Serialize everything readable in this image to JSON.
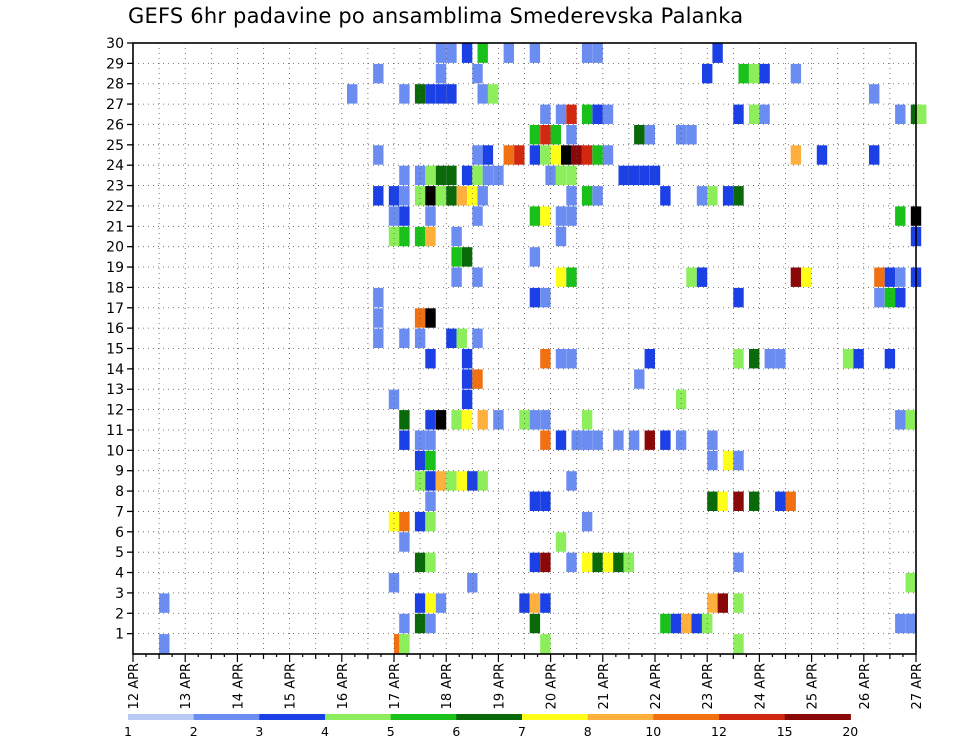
{
  "chart_data": {
    "type": "heatmap",
    "title": "GEFS 6hr padavine po ansamblima Smederevska Palanka",
    "xlabel": "",
    "ylabel": "",
    "x_tick_labels": [
      "12 APR",
      "13 APR",
      "14 APR",
      "15 APR",
      "16 APR",
      "17 APR",
      "18 APR",
      "19 APR",
      "20 APR",
      "21 APR",
      "22 APR",
      "23 APR",
      "24 APR",
      "25 APR",
      "26 APR",
      "27 APR"
    ],
    "y_tick_labels": [
      "1",
      "2",
      "3",
      "4",
      "5",
      "6",
      "7",
      "8",
      "9",
      "10",
      "11",
      "12",
      "13",
      "14",
      "15",
      "16",
      "17",
      "18",
      "19",
      "20",
      "21",
      "22",
      "23",
      "24",
      "25",
      "26",
      "27",
      "28",
      "29",
      "30"
    ],
    "xlim": [
      0,
      15
    ],
    "ylim": [
      0,
      30
    ],
    "time_step_days": 0.125,
    "grid": true,
    "legend": {
      "position": "bottom",
      "colors": [
        "#b9c8f5",
        "#6b8cf0",
        "#1a40e6",
        "#8cee5a",
        "#19c11a",
        "#0a6a0a",
        "#ffff1a",
        "#ffb03c",
        "#f07012",
        "#d22810",
        "#8a0808"
      ],
      "labels": [
        "1",
        "2",
        "3",
        "4",
        "5",
        "6",
        "7",
        "8",
        "10",
        "12",
        "15",
        "20"
      ]
    },
    "cells": [
      [
        0.5,
        0,
        1
      ],
      [
        5,
        0,
        8
      ],
      [
        5.1,
        0,
        3
      ],
      [
        7.8,
        0,
        3
      ],
      [
        11.5,
        0,
        3
      ],
      [
        5.1,
        1,
        1
      ],
      [
        5.4,
        1,
        5
      ],
      [
        5.6,
        1,
        1
      ],
      [
        7.6,
        1,
        5
      ],
      [
        10.1,
        1,
        4
      ],
      [
        10.3,
        1,
        2
      ],
      [
        10.5,
        1,
        7
      ],
      [
        10.7,
        1,
        2
      ],
      [
        10.9,
        1,
        3
      ],
      [
        14.6,
        1,
        1
      ],
      [
        14.8,
        1,
        1
      ],
      [
        0.5,
        2,
        1
      ],
      [
        5.4,
        2,
        2
      ],
      [
        5.6,
        2,
        6
      ],
      [
        5.8,
        2,
        1
      ],
      [
        7.4,
        2,
        2
      ],
      [
        7.6,
        2,
        7
      ],
      [
        7.8,
        2,
        2
      ],
      [
        11,
        2,
        7
      ],
      [
        11.2,
        2,
        10
      ],
      [
        11.5,
        2,
        3
      ],
      [
        4.9,
        3,
        1
      ],
      [
        6.4,
        3,
        1
      ],
      [
        14.8,
        3,
        3
      ],
      [
        5.4,
        4,
        5
      ],
      [
        5.6,
        4,
        3
      ],
      [
        7.6,
        4,
        2
      ],
      [
        7.8,
        4,
        10
      ],
      [
        8.3,
        4,
        1
      ],
      [
        8.6,
        4,
        6
      ],
      [
        8.8,
        4,
        5
      ],
      [
        9,
        4,
        6
      ],
      [
        9.2,
        4,
        5
      ],
      [
        9.4,
        4,
        3
      ],
      [
        11.5,
        4,
        1
      ],
      [
        5.1,
        5,
        1
      ],
      [
        8.1,
        5,
        3
      ],
      [
        4.9,
        6,
        6
      ],
      [
        5.1,
        6,
        8
      ],
      [
        5.4,
        6,
        2
      ],
      [
        5.6,
        6,
        3
      ],
      [
        8.6,
        6,
        1
      ],
      [
        5.6,
        7,
        1
      ],
      [
        7.6,
        7,
        2
      ],
      [
        7.8,
        7,
        2
      ],
      [
        11,
        7,
        5
      ],
      [
        11.2,
        7,
        6
      ],
      [
        11.5,
        7,
        10
      ],
      [
        11.8,
        7,
        5
      ],
      [
        12.3,
        7,
        2
      ],
      [
        12.5,
        7,
        8
      ],
      [
        5.4,
        8,
        3
      ],
      [
        5.6,
        8,
        2
      ],
      [
        5.8,
        8,
        7
      ],
      [
        6,
        8,
        3
      ],
      [
        6.2,
        8,
        6
      ],
      [
        6.4,
        8,
        2
      ],
      [
        6.6,
        8,
        3
      ],
      [
        8.3,
        8,
        1
      ],
      [
        5.4,
        9,
        2
      ],
      [
        5.6,
        9,
        4
      ],
      [
        11,
        9,
        1
      ],
      [
        11.3,
        9,
        6
      ],
      [
        11.5,
        9,
        1
      ],
      [
        5.1,
        10,
        2
      ],
      [
        5.4,
        10,
        1
      ],
      [
        5.6,
        10,
        1
      ],
      [
        7.8,
        10,
        8
      ],
      [
        8.1,
        10,
        2
      ],
      [
        8.4,
        10,
        1
      ],
      [
        8.6,
        10,
        1
      ],
      [
        8.8,
        10,
        1
      ],
      [
        9.2,
        10,
        1
      ],
      [
        9.5,
        10,
        1
      ],
      [
        9.8,
        10,
        10
      ],
      [
        10.1,
        10,
        2
      ],
      [
        10.4,
        10,
        1
      ],
      [
        11,
        10,
        1
      ],
      [
        5.1,
        11,
        5
      ],
      [
        5.6,
        11,
        2
      ],
      [
        5.8,
        11,
        11
      ],
      [
        6.1,
        11,
        3
      ],
      [
        6.3,
        11,
        6
      ],
      [
        6.6,
        11,
        7
      ],
      [
        6.9,
        11,
        1
      ],
      [
        7.4,
        11,
        3
      ],
      [
        7.6,
        11,
        1
      ],
      [
        7.8,
        11,
        1
      ],
      [
        8.6,
        11,
        3
      ],
      [
        14.6,
        11,
        1
      ],
      [
        14.8,
        11,
        3
      ],
      [
        4.9,
        12,
        1
      ],
      [
        6.3,
        12,
        2
      ],
      [
        10.4,
        12,
        3
      ],
      [
        6.3,
        13,
        2
      ],
      [
        6.5,
        13,
        8
      ],
      [
        9.6,
        13,
        1
      ],
      [
        5.6,
        14,
        2
      ],
      [
        6.3,
        14,
        2
      ],
      [
        7.8,
        14,
        8
      ],
      [
        8.1,
        14,
        1
      ],
      [
        8.3,
        14,
        1
      ],
      [
        9.8,
        14,
        2
      ],
      [
        11.5,
        14,
        3
      ],
      [
        11.8,
        14,
        5
      ],
      [
        12.1,
        14,
        1
      ],
      [
        12.3,
        14,
        1
      ],
      [
        13.6,
        14,
        3
      ],
      [
        13.8,
        14,
        2
      ],
      [
        14.4,
        14,
        2
      ],
      [
        4.6,
        15,
        1
      ],
      [
        5.1,
        15,
        1
      ],
      [
        5.4,
        15,
        1
      ],
      [
        6,
        15,
        2
      ],
      [
        6.2,
        15,
        3
      ],
      [
        6.5,
        15,
        1
      ],
      [
        4.6,
        16,
        1
      ],
      [
        5.4,
        16,
        8
      ],
      [
        5.6,
        16,
        11
      ],
      [
        4.6,
        17,
        1
      ],
      [
        7.6,
        17,
        2
      ],
      [
        7.8,
        17,
        1
      ],
      [
        11.5,
        17,
        2
      ],
      [
        14.2,
        17,
        1
      ],
      [
        14.4,
        17,
        4
      ],
      [
        14.6,
        17,
        2
      ],
      [
        6.1,
        18,
        1
      ],
      [
        6.5,
        18,
        1
      ],
      [
        8.1,
        18,
        6
      ],
      [
        8.3,
        18,
        4
      ],
      [
        10.6,
        18,
        3
      ],
      [
        10.8,
        18,
        2
      ],
      [
        12.6,
        18,
        10
      ],
      [
        12.8,
        18,
        6
      ],
      [
        14.2,
        18,
        8
      ],
      [
        14.4,
        18,
        2
      ],
      [
        14.6,
        18,
        1
      ],
      [
        14.9,
        18,
        2
      ],
      [
        6.1,
        19,
        4
      ],
      [
        6.3,
        19,
        5
      ],
      [
        7.6,
        19,
        1
      ],
      [
        4.9,
        20,
        3
      ],
      [
        5.1,
        20,
        4
      ],
      [
        5.4,
        20,
        4
      ],
      [
        5.6,
        20,
        7
      ],
      [
        6.1,
        20,
        1
      ],
      [
        8.1,
        20,
        1
      ],
      [
        14.9,
        20,
        2
      ],
      [
        4.9,
        21,
        1
      ],
      [
        5.1,
        21,
        2
      ],
      [
        5.6,
        21,
        1
      ],
      [
        6.5,
        21,
        1
      ],
      [
        7.6,
        21,
        4
      ],
      [
        7.8,
        21,
        6
      ],
      [
        8.1,
        21,
        1
      ],
      [
        8.3,
        21,
        1
      ],
      [
        14.6,
        21,
        4
      ],
      [
        14.9,
        21,
        11
      ],
      [
        4.6,
        22,
        2
      ],
      [
        4.9,
        22,
        2
      ],
      [
        5.1,
        22,
        1
      ],
      [
        5.4,
        22,
        3
      ],
      [
        5.6,
        22,
        11
      ],
      [
        5.8,
        22,
        3
      ],
      [
        6,
        22,
        5
      ],
      [
        6.2,
        22,
        7
      ],
      [
        6.4,
        22,
        6
      ],
      [
        6.6,
        22,
        1
      ],
      [
        8.3,
        22,
        1
      ],
      [
        8.6,
        22,
        4
      ],
      [
        8.8,
        22,
        1
      ],
      [
        10.1,
        22,
        2
      ],
      [
        10.8,
        22,
        1
      ],
      [
        11,
        22,
        3
      ],
      [
        11.3,
        22,
        2
      ],
      [
        11.5,
        22,
        5
      ],
      [
        5.1,
        23,
        1
      ],
      [
        5.4,
        23,
        1
      ],
      [
        5.6,
        23,
        3
      ],
      [
        5.8,
        23,
        5
      ],
      [
        6,
        23,
        5
      ],
      [
        6.3,
        23,
        2
      ],
      [
        6.5,
        23,
        3
      ],
      [
        6.7,
        23,
        1
      ],
      [
        6.9,
        23,
        1
      ],
      [
        7.9,
        23,
        1
      ],
      [
        8.1,
        23,
        3
      ],
      [
        8.3,
        23,
        3
      ],
      [
        9.3,
        23,
        2
      ],
      [
        9.5,
        23,
        2
      ],
      [
        9.7,
        23,
        2
      ],
      [
        9.9,
        23,
        2
      ],
      [
        4.6,
        24,
        1
      ],
      [
        6.5,
        24,
        1
      ],
      [
        6.7,
        24,
        2
      ],
      [
        7.1,
        24,
        8
      ],
      [
        7.3,
        24,
        9
      ],
      [
        7.6,
        24,
        2
      ],
      [
        7.8,
        24,
        3
      ],
      [
        8,
        24,
        6
      ],
      [
        8.2,
        24,
        11
      ],
      [
        8.4,
        24,
        10
      ],
      [
        8.6,
        24,
        9
      ],
      [
        8.8,
        24,
        4
      ],
      [
        9,
        24,
        1
      ],
      [
        12.6,
        24,
        7
      ],
      [
        13.1,
        24,
        2
      ],
      [
        14.1,
        24,
        2
      ],
      [
        7.6,
        25,
        4
      ],
      [
        7.8,
        25,
        9
      ],
      [
        8,
        25,
        4
      ],
      [
        8.3,
        25,
        1
      ],
      [
        9.6,
        25,
        5
      ],
      [
        9.8,
        25,
        1
      ],
      [
        10.4,
        25,
        1
      ],
      [
        10.6,
        25,
        1
      ],
      [
        7.8,
        26,
        1
      ],
      [
        8.1,
        26,
        1
      ],
      [
        8.3,
        26,
        9
      ],
      [
        8.6,
        26,
        4
      ],
      [
        8.8,
        26,
        2
      ],
      [
        9,
        26,
        1
      ],
      [
        11.5,
        26,
        2
      ],
      [
        11.8,
        26,
        3
      ],
      [
        12,
        26,
        1
      ],
      [
        14.6,
        26,
        1
      ],
      [
        14.9,
        26,
        5
      ],
      [
        15,
        26,
        3
      ],
      [
        4.1,
        27,
        1
      ],
      [
        5.1,
        27,
        1
      ],
      [
        5.4,
        27,
        5
      ],
      [
        5.6,
        27,
        2
      ],
      [
        5.8,
        27,
        2
      ],
      [
        6,
        27,
        2
      ],
      [
        6.6,
        27,
        1
      ],
      [
        6.8,
        27,
        3
      ],
      [
        14.1,
        27,
        1
      ],
      [
        4.6,
        28,
        1
      ],
      [
        5.8,
        28,
        1
      ],
      [
        6.5,
        28,
        1
      ],
      [
        10.9,
        28,
        2
      ],
      [
        11.6,
        28,
        4
      ],
      [
        11.8,
        28,
        3
      ],
      [
        12,
        28,
        2
      ],
      [
        12.6,
        28,
        1
      ],
      [
        5.8,
        29,
        1
      ],
      [
        6,
        29,
        1
      ],
      [
        6.3,
        29,
        2
      ],
      [
        6.6,
        29,
        4
      ],
      [
        7.1,
        29,
        1
      ],
      [
        7.6,
        29,
        1
      ],
      [
        8.6,
        29,
        1
      ],
      [
        8.8,
        29,
        1
      ],
      [
        11.1,
        29,
        2
      ]
    ]
  }
}
